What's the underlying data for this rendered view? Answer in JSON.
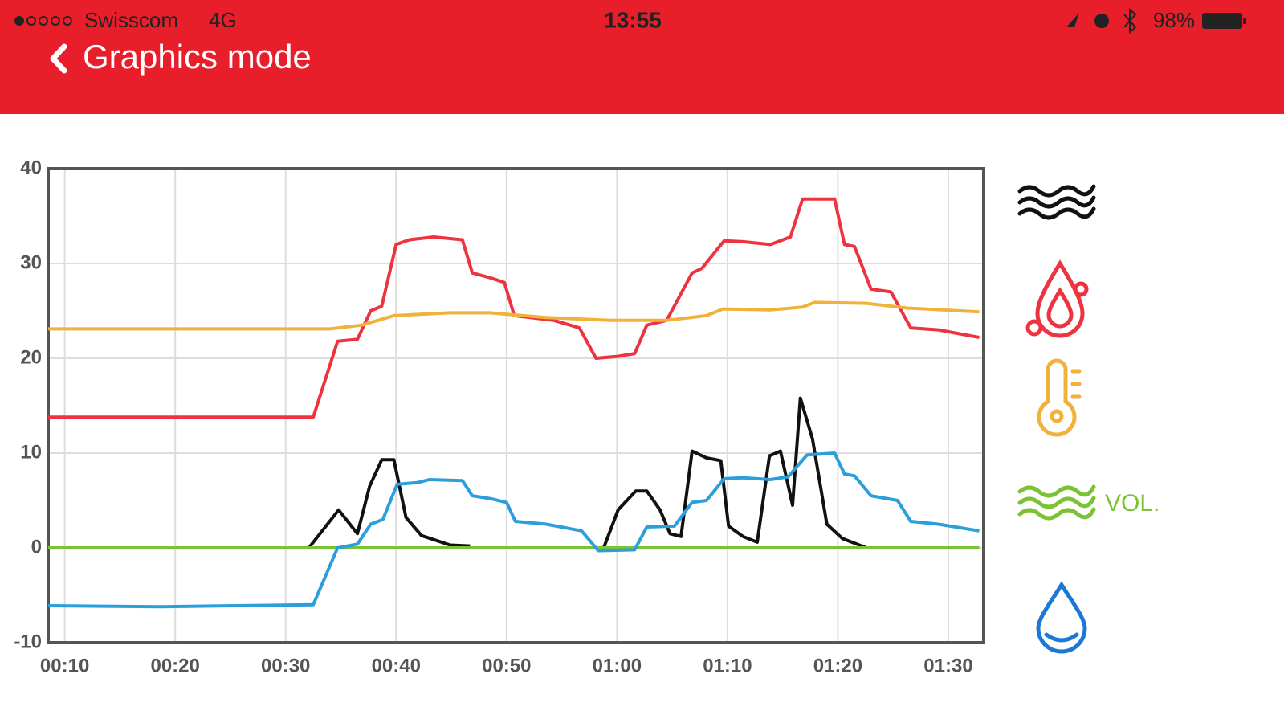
{
  "status_bar": {
    "carrier": "Swisscom",
    "network": "4G",
    "time": "13:55",
    "battery": "98%"
  },
  "header": {
    "title": "Graphics mode"
  },
  "chart_data": {
    "type": "line",
    "xlim": [
      8.5,
      93.2
    ],
    "ylim": [
      -10,
      40
    ],
    "xticks": [
      {
        "value": 10,
        "label": "00:10"
      },
      {
        "value": 20,
        "label": "00:20"
      },
      {
        "value": 30,
        "label": "00:30"
      },
      {
        "value": 40,
        "label": "00:40"
      },
      {
        "value": 50,
        "label": "00:50"
      },
      {
        "value": 60,
        "label": "01:00"
      },
      {
        "value": 70,
        "label": "01:10"
      },
      {
        "value": 80,
        "label": "01:20"
      },
      {
        "value": 90,
        "label": "01:30"
      }
    ],
    "yticks": [
      40,
      30,
      20,
      10,
      0,
      -10
    ],
    "grid": true,
    "series": [
      {
        "color": "#ee3340",
        "x": [
          8.5,
          32.5,
          34.7,
          36.5,
          37.7,
          38.7,
          40,
          41.2,
          43.4,
          46,
          46.9,
          48.5,
          49.8,
          50.7,
          54.3,
          56.6,
          58.1,
          60.1,
          61.6,
          62.7,
          64.5,
          66.8,
          67.7,
          69.7,
          71.4,
          73.9,
          75.7,
          76.8,
          79.7,
          80.6,
          81.5,
          83,
          84.8,
          86.6,
          89.1,
          92.8
        ],
        "values": [
          13.8,
          13.8,
          21.8,
          22,
          25,
          25.5,
          32,
          32.5,
          32.8,
          32.5,
          29,
          28.5,
          28,
          24.5,
          24,
          23.2,
          20,
          20.2,
          20.5,
          23.5,
          24,
          29,
          29.5,
          32.4,
          32.3,
          32,
          32.8,
          36.8,
          36.8,
          32,
          31.8,
          27.3,
          27,
          23.2,
          23,
          22.2
        ]
      },
      {
        "color": "#f0b23a",
        "x": [
          8.5,
          34,
          36.9,
          39.8,
          44.9,
          48.5,
          53.6,
          59.4,
          64.5,
          68.1,
          69.6,
          73.9,
          76.8,
          77.9,
          82.6,
          86.3,
          92.8
        ],
        "values": [
          23.1,
          23.1,
          23.5,
          24.5,
          24.8,
          24.8,
          24.3,
          24,
          24,
          24.5,
          25.2,
          25.1,
          25.4,
          25.9,
          25.8,
          25.3,
          24.9
        ]
      },
      {
        "color": "#111111",
        "x": [
          32.1,
          34.8,
          36.5,
          37.6,
          38.7,
          39.8,
          40.9,
          42.3,
          44.9,
          46.7,
          52,
          58.8,
          60.1,
          61.7,
          62.7,
          63.9,
          64.8,
          65.8,
          66.8,
          68.1,
          69.4,
          70.1,
          71.4,
          72.7,
          73.8,
          74.8,
          75.9,
          76.6,
          77.7,
          79,
          80.4,
          82.6
        ],
        "values": [
          0,
          4,
          1.5,
          6.5,
          9.3,
          9.3,
          3.2,
          1.3,
          0.3,
          0.2,
          null,
          0,
          4,
          6,
          6,
          4,
          1.5,
          1.2,
          10.2,
          9.5,
          9.2,
          2.3,
          1.2,
          0.6,
          9.7,
          10.2,
          4.5,
          15.8,
          11.5,
          2.5,
          1,
          0
        ]
      },
      {
        "color": "#7bc234",
        "label": "VOL.",
        "x": [
          8.5,
          92.8
        ],
        "values": [
          0,
          0
        ]
      },
      {
        "color": "#2b9fdc",
        "x": [
          8.5,
          18.7,
          32.5,
          34.7,
          36.5,
          37.7,
          38.8,
          40.1,
          42,
          43,
          46,
          46.9,
          48.5,
          50,
          50.8,
          53.6,
          56.8,
          58.3,
          61.6,
          62.7,
          65.2,
          66.8,
          68.1,
          69.7,
          71.4,
          73.9,
          75.5,
          77.2,
          79.7,
          80.6,
          81.5,
          83,
          85.4,
          86.6,
          89.1,
          92.8
        ],
        "values": [
          -6.1,
          -6.2,
          -6,
          0,
          0.4,
          2.5,
          3,
          6.7,
          6.9,
          7.2,
          7.1,
          5.5,
          5.2,
          4.8,
          2.8,
          2.5,
          1.8,
          -0.3,
          -0.2,
          2.2,
          2.3,
          4.8,
          5,
          7.3,
          7.4,
          7.2,
          7.5,
          9.8,
          10,
          7.8,
          7.6,
          5.5,
          5,
          2.8,
          2.5,
          1.8
        ]
      }
    ]
  }
}
